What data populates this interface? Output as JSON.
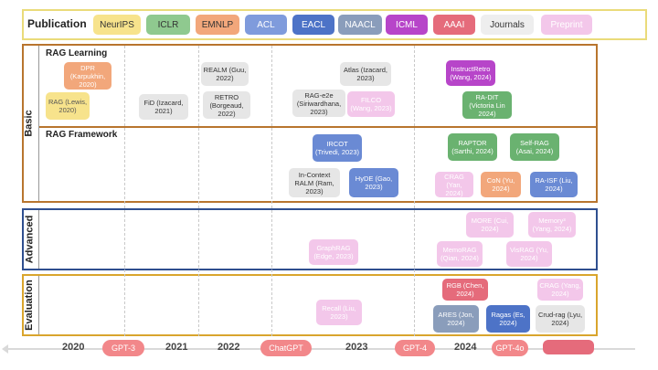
{
  "legend": {
    "title": "Publication",
    "venues": [
      {
        "label": "NeurIPS",
        "color": "#f7e38c"
      },
      {
        "label": "ICLR",
        "color": "#8fc98f"
      },
      {
        "label": "EMNLP",
        "color": "#f2a77b"
      },
      {
        "label": "ACL",
        "color": "#7f9bdc"
      },
      {
        "label": "EACL",
        "color": "#4d73c7"
      },
      {
        "label": "NAACL",
        "color": "#8a9dbb"
      },
      {
        "label": "ICML",
        "color": "#b745c9"
      },
      {
        "label": "AAAI",
        "color": "#e56b7b"
      },
      {
        "label": "Journals",
        "color": "#eeeeee"
      },
      {
        "label": "Preprint",
        "color": "#f3c7ea"
      }
    ]
  },
  "sections": {
    "basic": "Basic",
    "advanced": "Advanced",
    "evaluation": "Evaluation"
  },
  "subheads": {
    "learning": "RAG Learning",
    "framework": "RAG Framework"
  },
  "nodes": {
    "dpr": "DPR (Karpukhin, 2020)",
    "rag": "RAG (Lewis, 2020)",
    "fid": "FiD (Izacard, 2021)",
    "realm": "REALM (Guu, 2022)",
    "retro": "RETRO (Borgeaud, 2022)",
    "atlas": "Atlas (Izacard, 2023)",
    "rage2e": "RAG-e2e (Siriwardhana, 2023)",
    "filco": "FILCO (Wang, 2023)",
    "instructretro": "InstructRetro (Wang, 2024)",
    "radit": "RA-DIT (Victoria Lin 2024)",
    "ircot": "IRCOT (Trivedi, 2023)",
    "incontext": "In-Context RALM (Ram, 2023)",
    "hyde": "HyDE (Gao, 2023)",
    "raptor": "RAPTOR (Sarthi, 2024)",
    "selfrag": "Self-RAG (Asai, 2024)",
    "crag": "CRAG (Yan, 2024)",
    "con": "CoN (Yu, 2024)",
    "raisf": "RA-ISF (Liu, 2024)",
    "more": "MORE (Cui, 2024)",
    "memory3": "Memory³ (Yang, 2024)",
    "graphrag": "GraphRAG (Edge, 2023)",
    "memorag": "MemoRAG (Qian, 2024)",
    "visrag": "VisRAG (Yu, 2024)",
    "rgb": "RGB (Chen, 2024)",
    "crag2": "CRAG (Yang, 2024)",
    "recall": "Recall (Liu, 2023)",
    "ares": "ARES (Jon, 2024)",
    "ragas": "Ragas (Es, 2024)",
    "crudrag": "Crud-rag (Lyu, 2024)"
  },
  "timeline": {
    "years": [
      "2020",
      "2021",
      "2022",
      "2023",
      "2024"
    ],
    "milestones": [
      "GPT-3",
      "ChatGPT",
      "GPT-4",
      "GPT-4o"
    ]
  }
}
